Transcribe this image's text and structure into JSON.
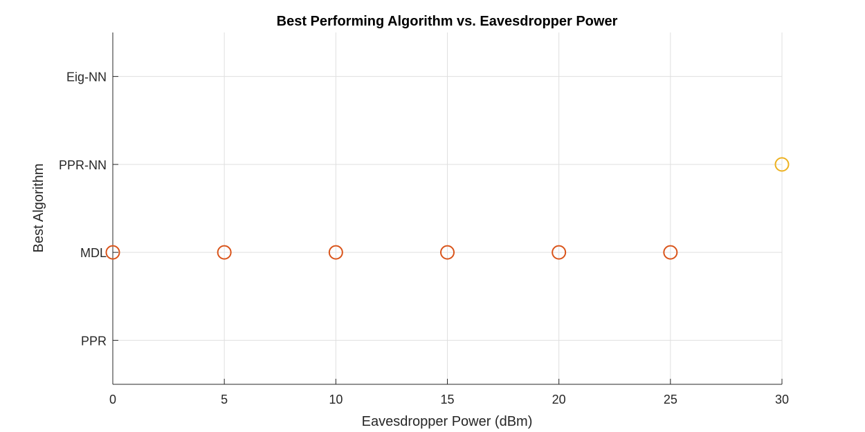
{
  "chart_data": {
    "type": "scatter",
    "title": "Best Performing Algorithm vs. Eavesdropper Power",
    "xlabel": "Eavesdropper Power (dBm)",
    "ylabel": "Best Algorithm",
    "xlim": [
      0,
      30
    ],
    "xticks": [
      0,
      5,
      10,
      15,
      20,
      25,
      30
    ],
    "y_categories": [
      "PPR",
      "MDL",
      "PPR-NN",
      "Eig-NN"
    ],
    "grid": true,
    "marker": "circle",
    "points": [
      {
        "x": 0,
        "y": "MDL",
        "color": "#D95319"
      },
      {
        "x": 5,
        "y": "MDL",
        "color": "#D95319"
      },
      {
        "x": 10,
        "y": "MDL",
        "color": "#D95319"
      },
      {
        "x": 15,
        "y": "MDL",
        "color": "#D95319"
      },
      {
        "x": 20,
        "y": "MDL",
        "color": "#D95319"
      },
      {
        "x": 25,
        "y": "MDL",
        "color": "#D95319"
      },
      {
        "x": 30,
        "y": "PPR-NN",
        "color": "#EDB120"
      }
    ]
  }
}
